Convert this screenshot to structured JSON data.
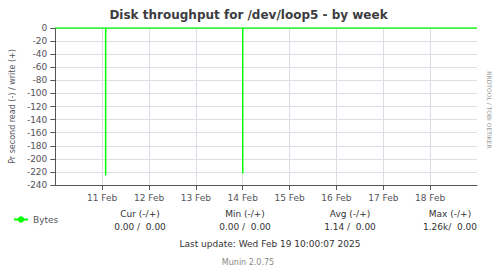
{
  "chart_data": {
    "type": "line",
    "title": "Disk throughput for /dev/loop5 - by week",
    "ylabel": "Pr second read (-) / write (+)",
    "x": [
      1707523200,
      1707616000,
      1707616000,
      1707616000,
      1707868800,
      1707868800,
      1707868800,
      1708300800
    ],
    "series": [
      {
        "name": "Bytes",
        "color": "#00ff00",
        "values": [
          0,
          0,
          -225,
          0,
          0,
          -222,
          0,
          0
        ]
      }
    ],
    "xlim": [
      1707523200,
      1708300800
    ],
    "xticks": [
      {
        "value": 1707609600,
        "label": "11 Feb"
      },
      {
        "value": 1707696000,
        "label": "12 Feb"
      },
      {
        "value": 1707782400,
        "label": "13 Feb"
      },
      {
        "value": 1707868800,
        "label": "14 Feb"
      },
      {
        "value": 1707955200,
        "label": "15 Feb"
      },
      {
        "value": 1708041600,
        "label": "16 Feb"
      },
      {
        "value": 1708128000,
        "label": "17 Feb"
      },
      {
        "value": 1708214400,
        "label": "18 Feb"
      }
    ],
    "ylim": [
      -240,
      0
    ],
    "yticks": [
      0,
      -20,
      -40,
      -60,
      -80,
      -100,
      -120,
      -140,
      -160,
      -180,
      -200,
      -220,
      -240
    ],
    "grid": true,
    "legend": "bottom",
    "annotations": [
      "Cur (-/+)",
      "0.00 /  0.00",
      "Min (-/+)",
      "0.00 /  0.00",
      "Avg (-/+)",
      "1.14 /  0.00",
      "Max (-/+)",
      "1.26k/  0.00",
      "Last update: Wed Feb 19 10:00:07 2025",
      "Munin 2.0.75",
      "RRDTOOL / TOBI OETIKER"
    ]
  }
}
